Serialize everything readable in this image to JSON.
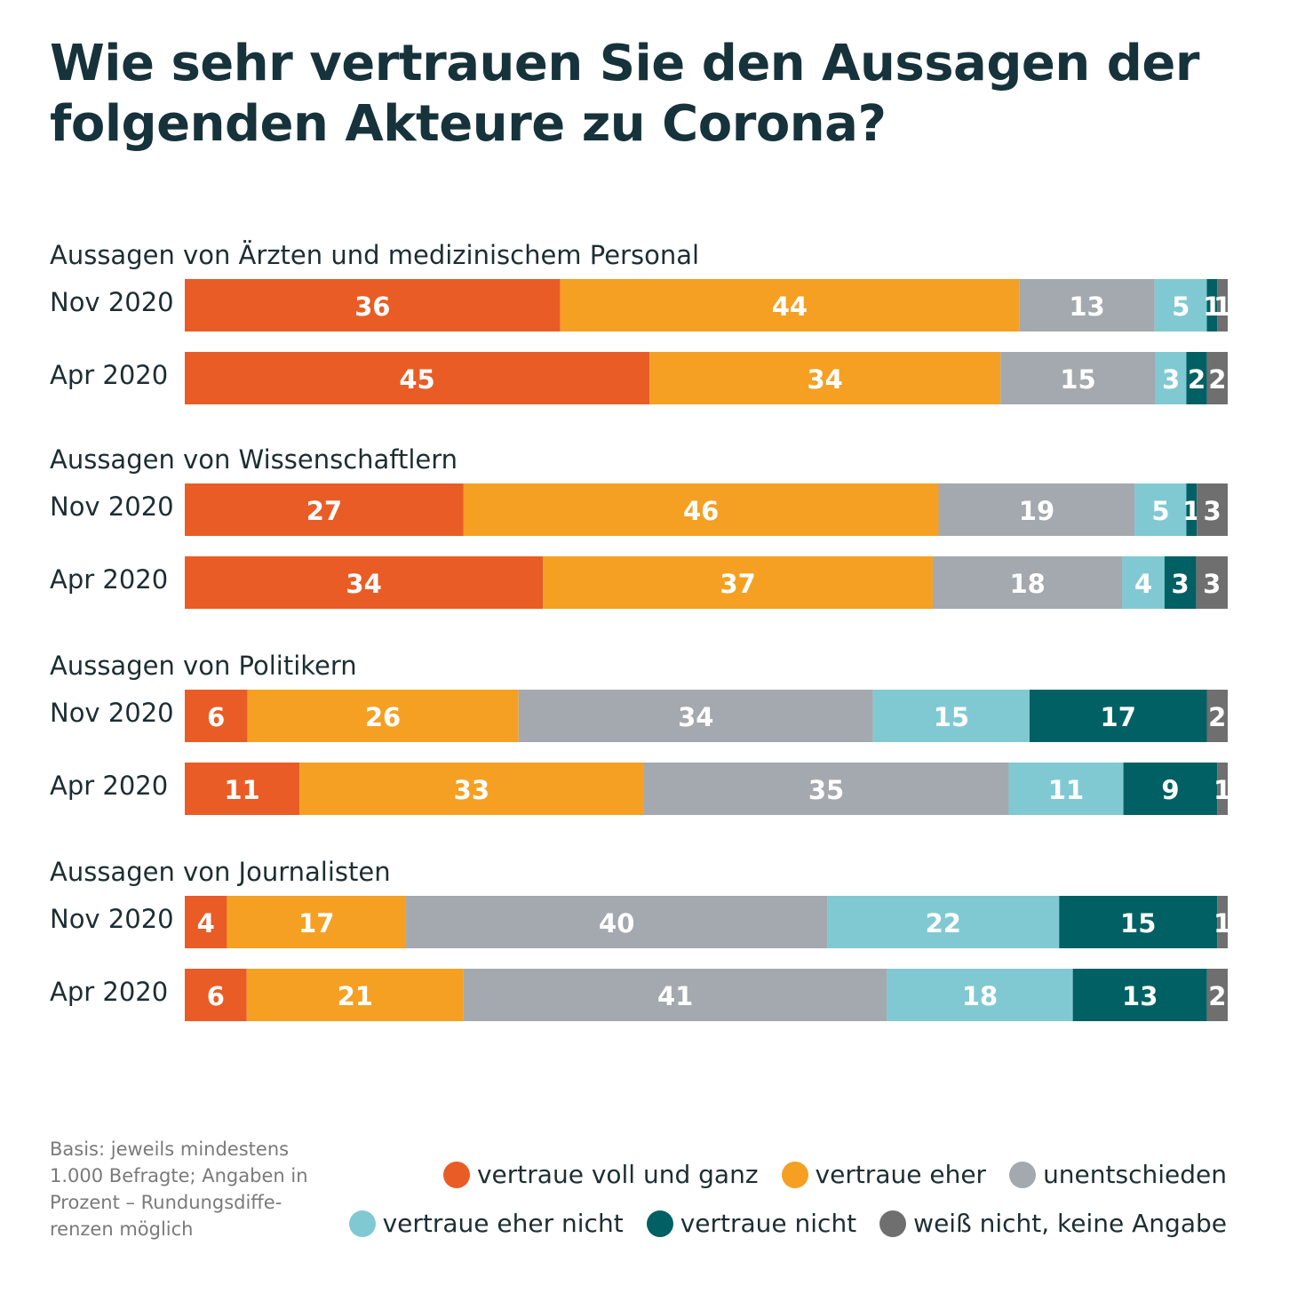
{
  "title": "Wie sehr vertrauen Sie den Aussagen der folgenden Akteure zu Corona?",
  "basis_note": "Basis: jeweils mindestens 1.000 Befragte; Angaben in Prozent – Rundungsdiffe-renzen möglich",
  "chart_data": {
    "type": "bar",
    "orientation": "horizontal",
    "stacked": true,
    "unit": "%",
    "categories": [
      "vertraue voll und ganz",
      "vertraue eher",
      "unentschieden",
      "vertraue eher nicht",
      "vertraue nicht",
      "weiß nicht, keine Angabe"
    ],
    "colors": [
      "#e95c26",
      "#f5a023",
      "#a3a9ae",
      "#80c9d3",
      "#006064",
      "#6f6f6f"
    ],
    "groups": [
      {
        "title": "Aussagen von Ärzten und medizinischem Personal",
        "rows": [
          {
            "label": "Nov 2020",
            "values": [
              36,
              44,
              13,
              5,
              1,
              1
            ]
          },
          {
            "label": "Apr 2020",
            "values": [
              45,
              34,
              15,
              3,
              2,
              2
            ]
          }
        ]
      },
      {
        "title": "Aussagen von Wissenschaftlern",
        "rows": [
          {
            "label": "Nov 2020",
            "values": [
              27,
              46,
              19,
              5,
              1,
              3
            ]
          },
          {
            "label": "Apr 2020",
            "values": [
              34,
              37,
              18,
              4,
              3,
              3
            ]
          }
        ]
      },
      {
        "title": "Aussagen von Politikern",
        "rows": [
          {
            "label": "Nov 2020",
            "values": [
              6,
              26,
              34,
              15,
              17,
              2
            ]
          },
          {
            "label": "Apr 2020",
            "values": [
              11,
              33,
              35,
              11,
              9,
              1
            ]
          }
        ]
      },
      {
        "title": "Aussagen von Journalisten",
        "rows": [
          {
            "label": "Nov 2020",
            "values": [
              4,
              17,
              40,
              22,
              15,
              1
            ]
          },
          {
            "label": "Apr 2020",
            "values": [
              6,
              21,
              41,
              18,
              13,
              2
            ]
          }
        ]
      }
    ]
  }
}
